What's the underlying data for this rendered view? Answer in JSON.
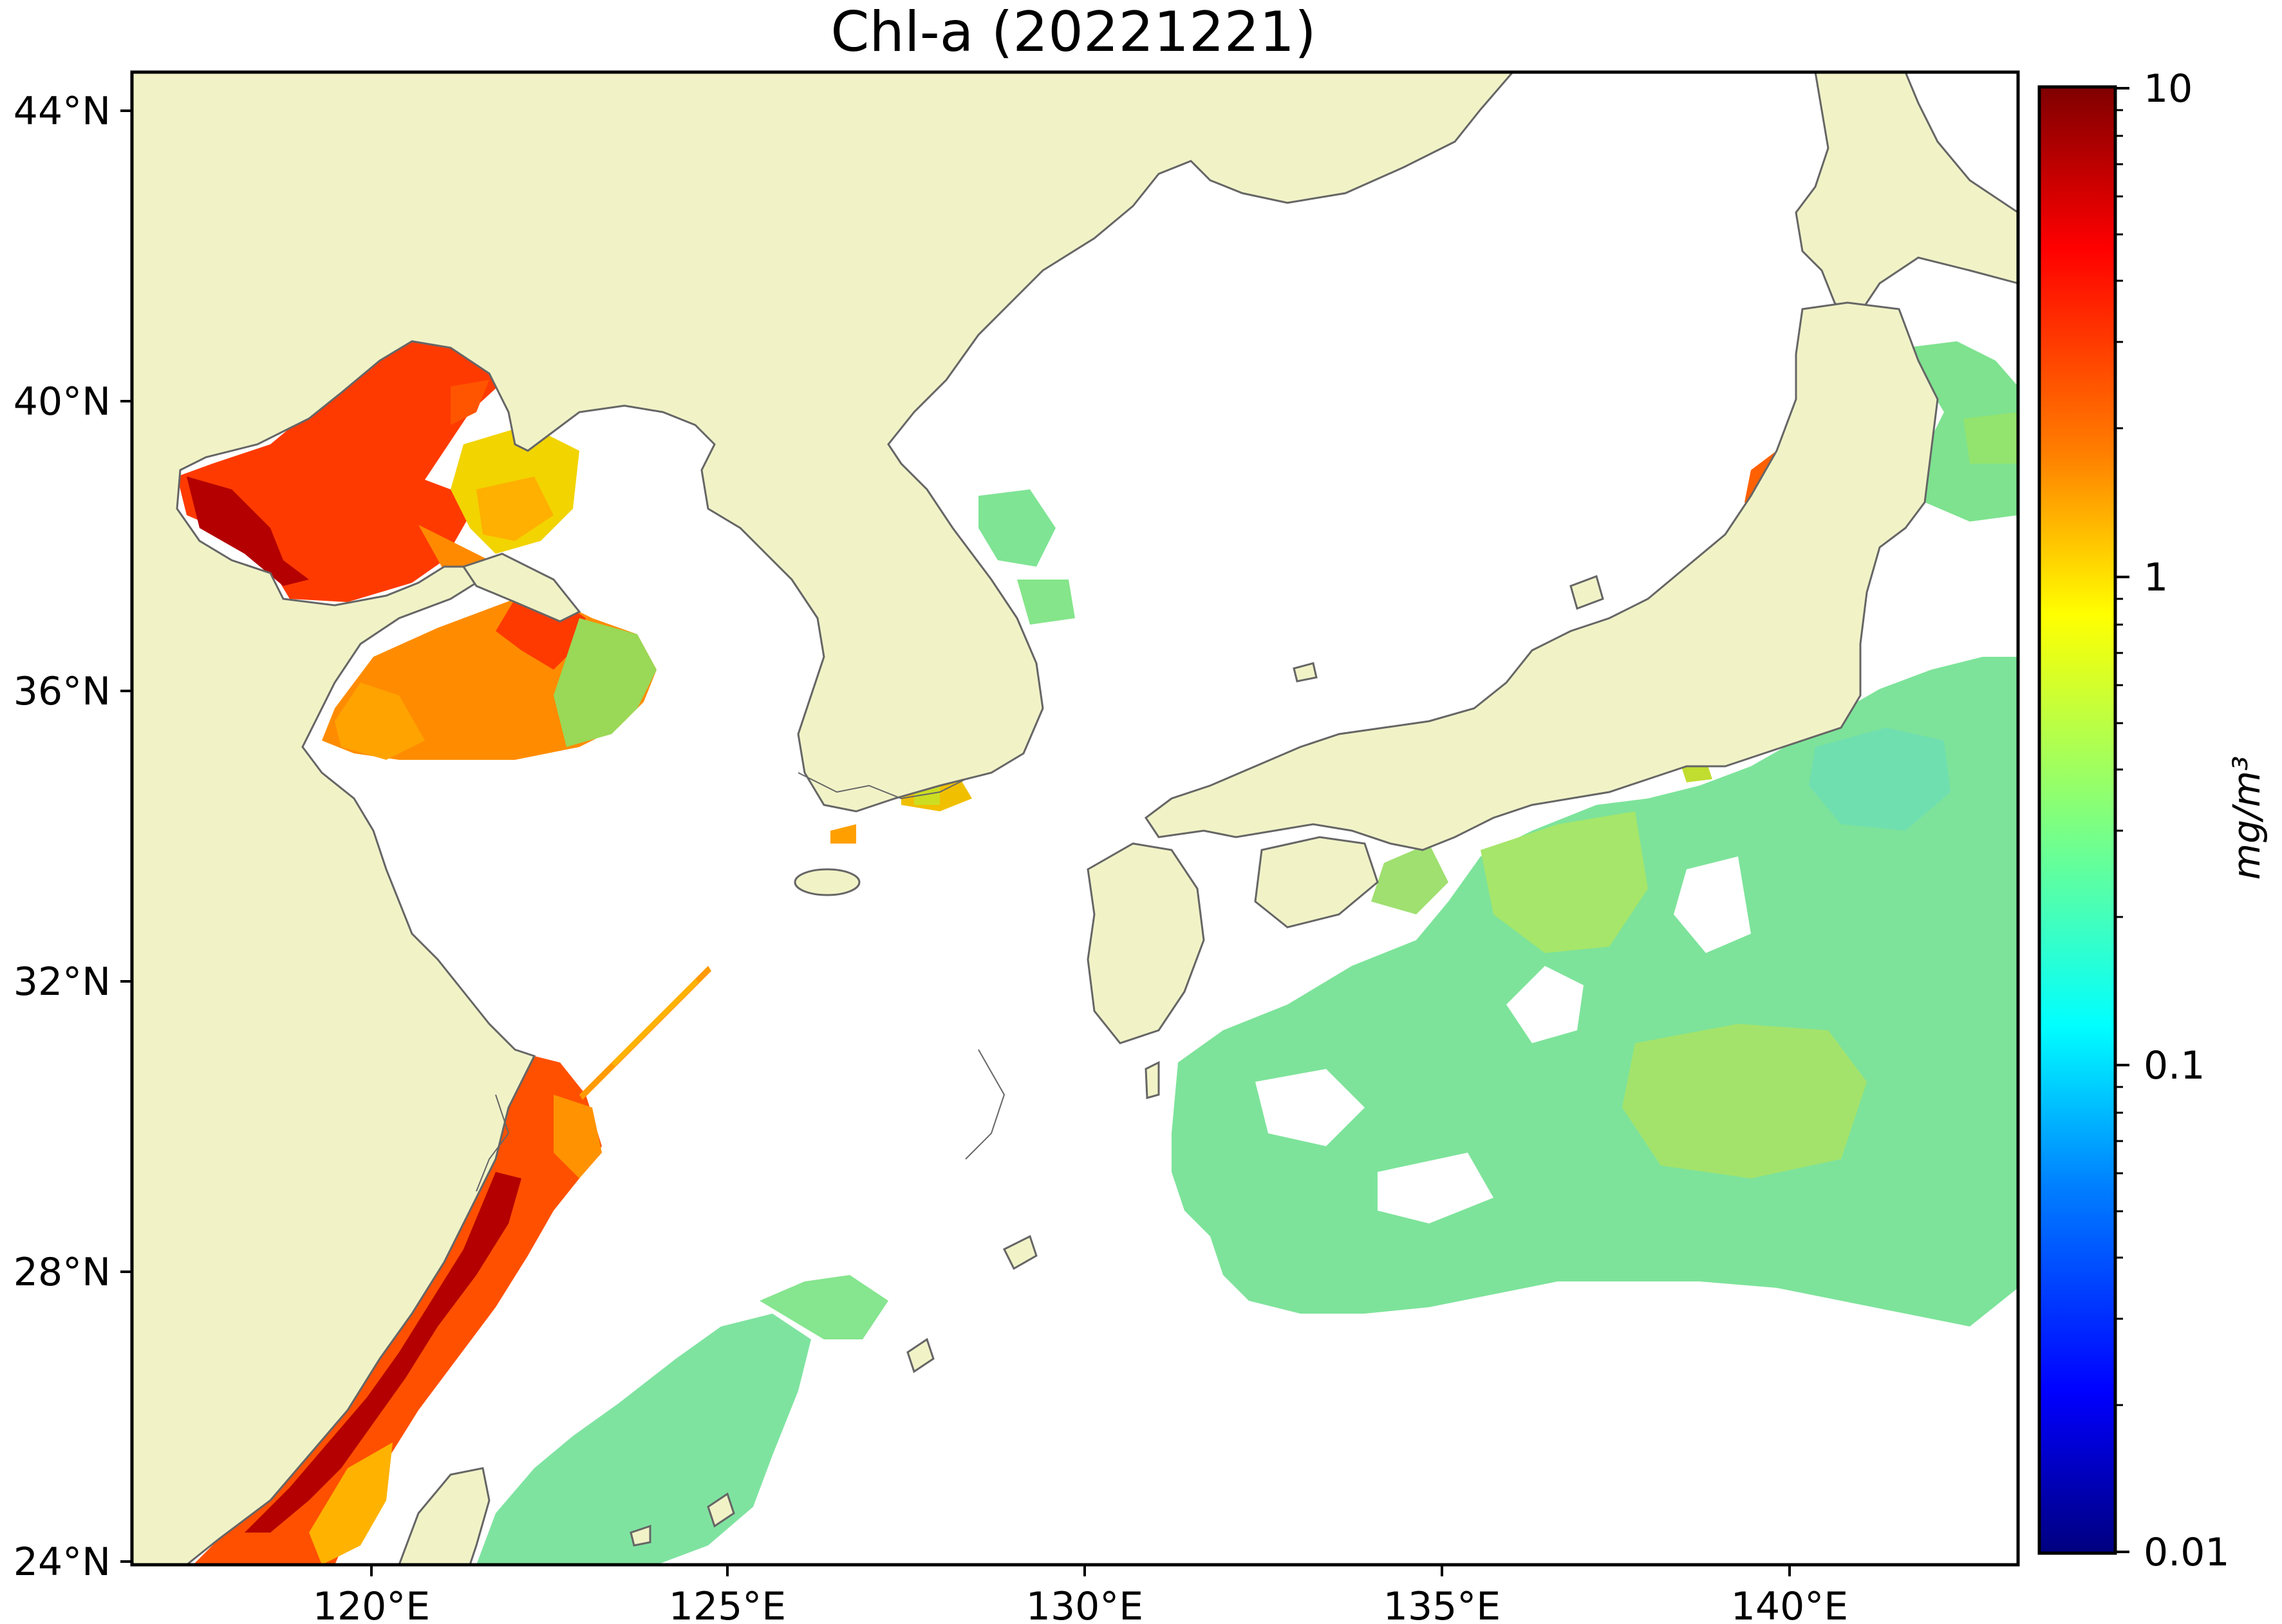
{
  "title": "Chl-a (20221221)",
  "map": {
    "lon_range": [
      117,
      143
    ],
    "lat_range": [
      24,
      44.5
    ],
    "lon_ticks": [
      "120°E",
      "125°E",
      "130°E",
      "135°E",
      "140°E"
    ],
    "lat_ticks": [
      "44°N",
      "40°N",
      "36°N",
      "32°N",
      "28°N",
      "24°N"
    ],
    "land_color": "#f1f3c7",
    "coast_color": "#666666",
    "nodata_color": "#ffffff"
  },
  "colorbar": {
    "label": "mg/m³",
    "ticks": [
      "10",
      "1",
      "0.1",
      "0.01"
    ],
    "range": [
      0.01,
      10
    ],
    "scale": "log",
    "colormap": "jet",
    "colors": [
      "#00007f",
      "#0000ff",
      "#007fff",
      "#00ffff",
      "#7fff7f",
      "#ffff00",
      "#ff7f00",
      "#ff0000",
      "#7f0000"
    ]
  }
}
